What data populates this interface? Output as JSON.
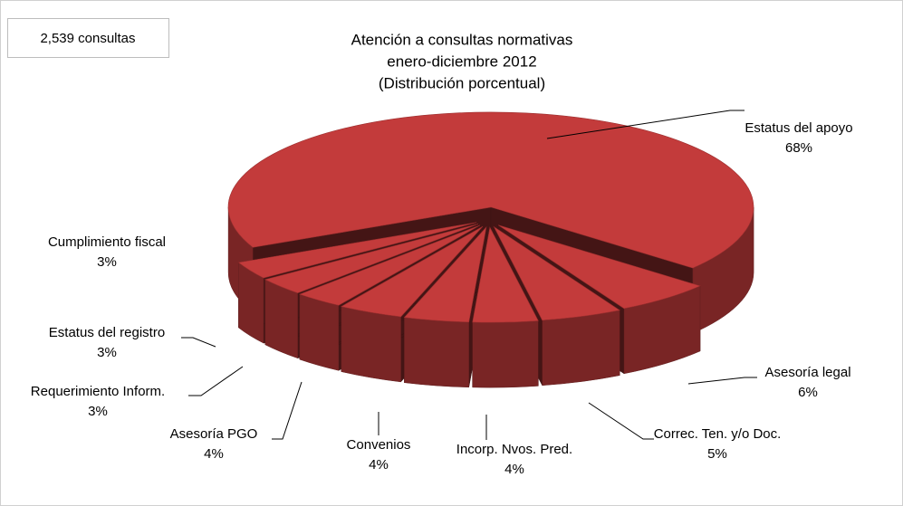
{
  "chart_data": {
    "type": "pie",
    "title": [
      "Atención a consultas normativas",
      "enero-diciembre 2012",
      "(Distribución porcentual)"
    ],
    "annotation": "2,539 consultas",
    "categories": [
      "Estatus del apoyo",
      "Asesoría legal",
      "Correc. Ten. y/o Doc.",
      "Incorp. Nvos. Pred.",
      "Convenios",
      "Asesoría PGO",
      "Requerimiento Inform.",
      "Estatus del registro",
      "Cumplimiento fiscal"
    ],
    "values": [
      68,
      6,
      5,
      4,
      4,
      4,
      3,
      3,
      3
    ],
    "value_labels": [
      "68%",
      "6%",
      "5%",
      "4%",
      "4%",
      "4%",
      "3%",
      "3%",
      "3%"
    ],
    "color": "#c33b3b"
  }
}
